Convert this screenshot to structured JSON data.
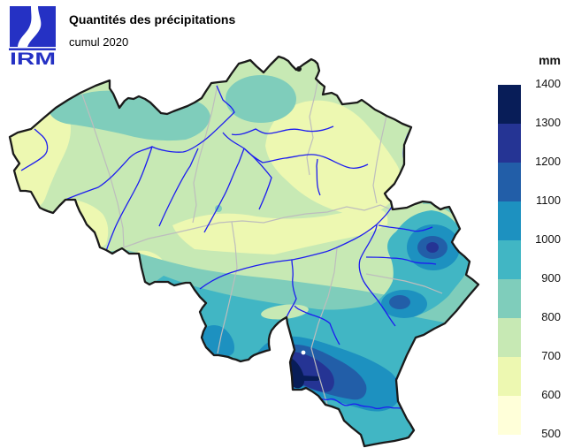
{
  "header": {
    "logo_text": "IRM",
    "title": "Quantités des précipitations",
    "subtitle": "cumul 2020"
  },
  "legend": {
    "unit": "mm",
    "tick_labels": [
      "1400",
      "1300",
      "1200",
      "1100",
      "1000",
      "900",
      "800",
      "700",
      "600",
      "500"
    ],
    "bands": [
      {
        "min": 500,
        "color": "#ffffd9"
      },
      {
        "min": 600,
        "color": "#edf8b1"
      },
      {
        "min": 700,
        "color": "#c7e9b4"
      },
      {
        "min": 800,
        "color": "#7fcdbb"
      },
      {
        "min": 900,
        "color": "#41b6c4"
      },
      {
        "min": 1000,
        "color": "#1d91c0"
      },
      {
        "min": 1100,
        "color": "#225ea8"
      },
      {
        "min": 1200,
        "color": "#253494"
      },
      {
        "min": 1300,
        "color": "#081d58"
      }
    ]
  },
  "map_style": {
    "border_color": "#1a1a1a",
    "province_color": "#bdbdbd",
    "river_color": "#1d1df0",
    "logo_color": "#2531c4",
    "background": "#ffffff"
  },
  "chart_data": {
    "type": "heatmap",
    "title": "Quantités des précipitations",
    "subtitle": "cumul 2020",
    "unit": "mm",
    "scale_values": [
      500,
      600,
      700,
      800,
      900,
      1000,
      1100,
      1200,
      1300,
      1400
    ],
    "scale_colors": [
      "#ffffd9",
      "#edf8b1",
      "#c7e9b4",
      "#7fcdbb",
      "#41b6c4",
      "#1d91c0",
      "#225ea8",
      "#253494",
      "#081d58"
    ],
    "legend_position": "right"
  }
}
